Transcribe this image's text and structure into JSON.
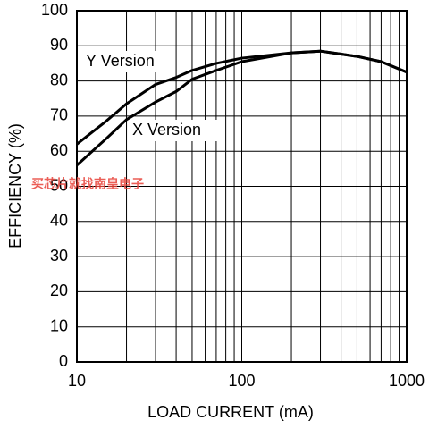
{
  "chart_data": {
    "type": "line",
    "xlabel": "LOAD CURRENT (mA)",
    "ylabel": "EFFICIENCY (%)",
    "x": [
      10,
      15,
      20,
      30,
      40,
      50,
      70,
      100,
      200,
      300,
      500,
      700,
      1000
    ],
    "series": [
      {
        "name": "Y Version",
        "color": "#000000",
        "values": [
          62,
          68.5,
          73.5,
          79,
          81,
          83,
          85,
          86.5,
          88,
          88.5,
          87,
          85.5,
          82.5
        ]
      },
      {
        "name": "X Version",
        "color": "#000000",
        "values": [
          56,
          63.5,
          69,
          74,
          77,
          80.5,
          83,
          85.5,
          88,
          88.5,
          87,
          85.5,
          82.5
        ]
      }
    ],
    "xscale": "log",
    "xlim": [
      10,
      1000
    ],
    "xticks": [
      10,
      100,
      1000
    ],
    "ylim": [
      0,
      100
    ],
    "yticks": [
      0,
      10,
      20,
      30,
      40,
      50,
      60,
      70,
      80,
      90,
      100
    ],
    "grid": true,
    "watermark": "买芯片就找南皇电子"
  }
}
